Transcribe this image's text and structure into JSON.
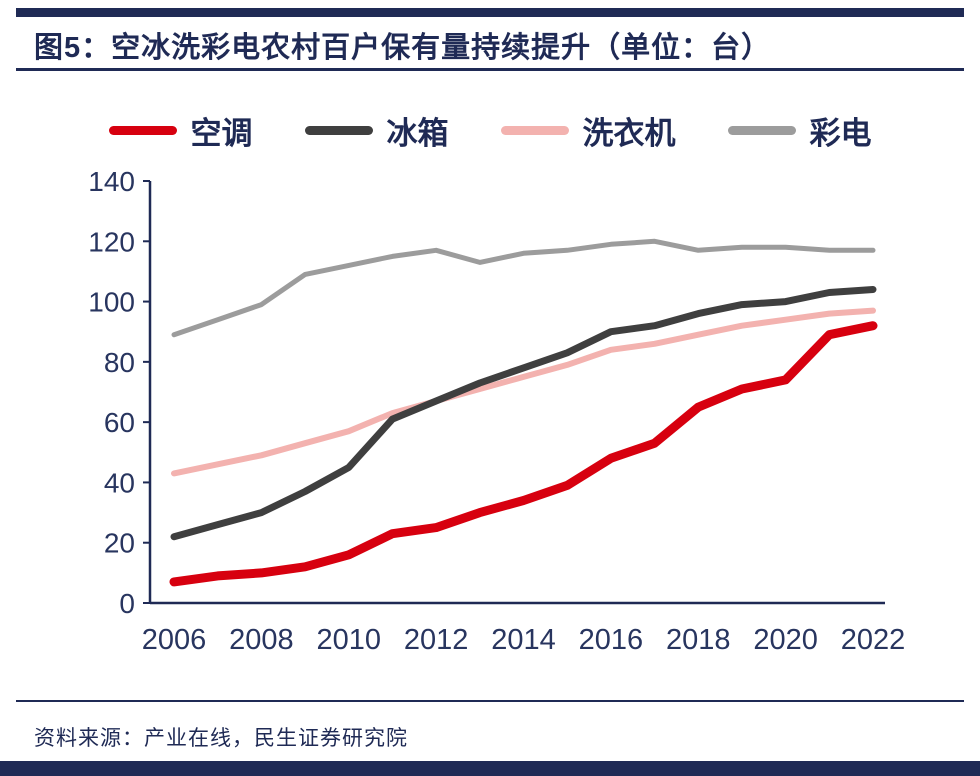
{
  "header": {
    "title": "图5：空冰洗彩电农村百户保有量持续提升（单位：台）"
  },
  "footer": {
    "source": "资料来源：产业在线，民生证券研究院"
  },
  "colors": {
    "accent_navy": "#1f2a55",
    "axis_text": "#28355f",
    "background": "#ffffff"
  },
  "chart_data": {
    "type": "line",
    "title": "图5：空冰洗彩电农村百户保有量持续提升（单位：台）",
    "xlabel": "",
    "ylabel": "",
    "x": [
      2006,
      2007,
      2008,
      2009,
      2010,
      2011,
      2012,
      2013,
      2014,
      2015,
      2016,
      2017,
      2018,
      2019,
      2020,
      2021,
      2022
    ],
    "xtick_labels": [
      "2006",
      "2008",
      "2010",
      "2012",
      "2014",
      "2016",
      "2018",
      "2020",
      "2022"
    ],
    "yticks": [
      0,
      20,
      40,
      60,
      80,
      100,
      120,
      140
    ],
    "ylim": [
      0,
      140
    ],
    "grid": false,
    "legend_position": "top",
    "series": [
      {
        "name": "空调",
        "color": "#d7000f",
        "values": [
          7,
          9,
          10,
          12,
          16,
          23,
          25,
          30,
          34,
          39,
          48,
          53,
          65,
          71,
          74,
          89,
          92
        ]
      },
      {
        "name": "冰箱",
        "color": "#3f3f3f",
        "values": [
          22,
          26,
          30,
          37,
          45,
          61,
          67,
          73,
          78,
          83,
          90,
          92,
          96,
          99,
          100,
          103,
          104
        ]
      },
      {
        "name": "洗衣机",
        "color": "#f3b2af",
        "values": [
          43,
          46,
          49,
          53,
          57,
          63,
          67,
          71,
          75,
          79,
          84,
          86,
          89,
          92,
          94,
          96,
          97
        ]
      },
      {
        "name": "彩电",
        "color": "#9c9c9c",
        "values": [
          89,
          94,
          99,
          109,
          112,
          115,
          117,
          113,
          116,
          117,
          119,
          120,
          117,
          118,
          118,
          117,
          117
        ]
      }
    ]
  }
}
